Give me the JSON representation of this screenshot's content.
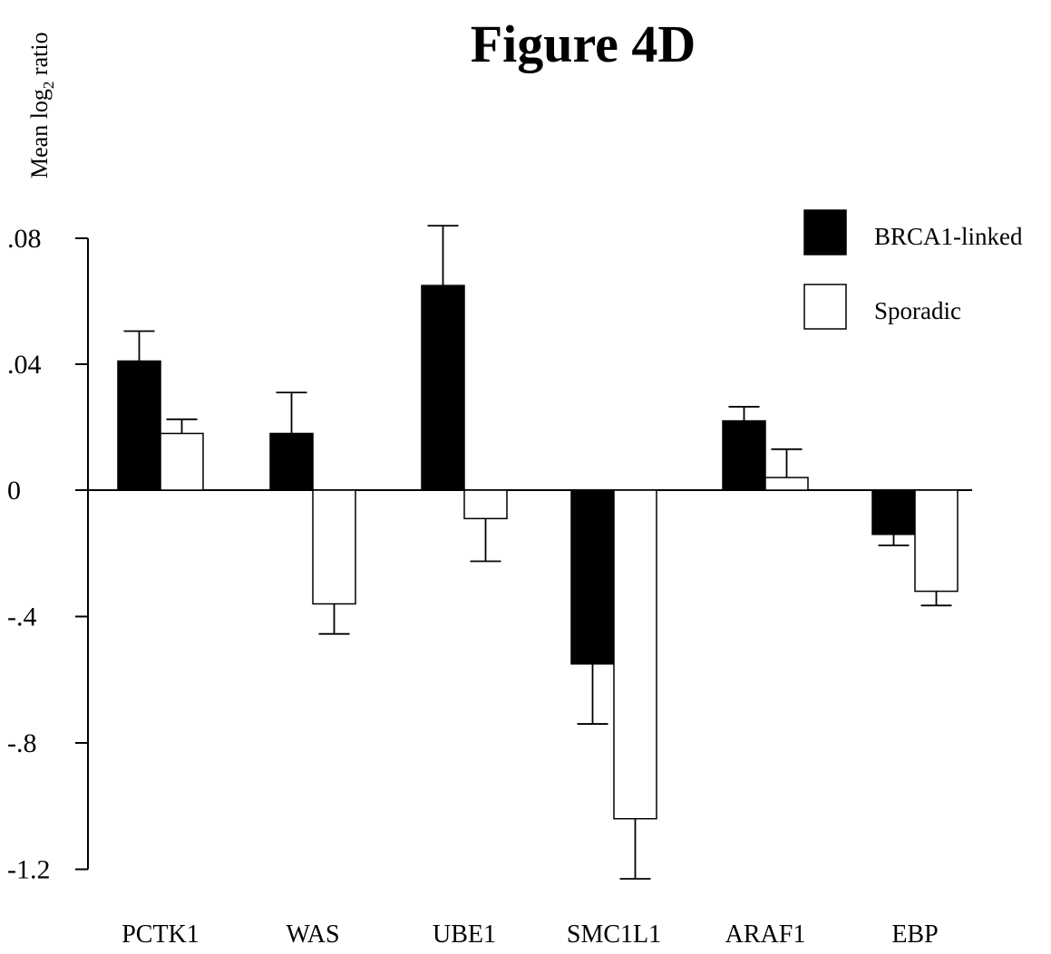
{
  "chart_data": {
    "type": "bar",
    "title": "Figure 4D",
    "ylabel_main": "Mean log",
    "ylabel_sub": "2",
    "ylabel_tail": " ratio",
    "xlabel": "",
    "categories": [
      "PCTK1",
      "WAS",
      "UBE1",
      "SMC1L1",
      "ARAF1",
      "EBP"
    ],
    "y_ticks": [
      {
        "label": ".08"
      },
      {
        "label": ".04"
      },
      {
        "label": "0"
      },
      {
        "label": "-.4"
      },
      {
        "label": "-.8"
      },
      {
        "label": "-1.2"
      }
    ],
    "legend_position": "top-right",
    "series": [
      {
        "name": "BRCA1-linked",
        "color": "#000000",
        "values": [
          0.041,
          0.018,
          0.065,
          -0.55,
          0.022,
          -0.14
        ],
        "error": [
          0.0095,
          0.013,
          0.019,
          0.19,
          0.0045,
          0.035
        ]
      },
      {
        "name": "Sporadic",
        "color": "#ffffff",
        "values": [
          0.018,
          -0.36,
          -0.09,
          -1.04,
          0.004,
          -0.32
        ],
        "error": [
          0.0045,
          0.095,
          0.135,
          0.19,
          0.009,
          0.045
        ]
      }
    ]
  }
}
